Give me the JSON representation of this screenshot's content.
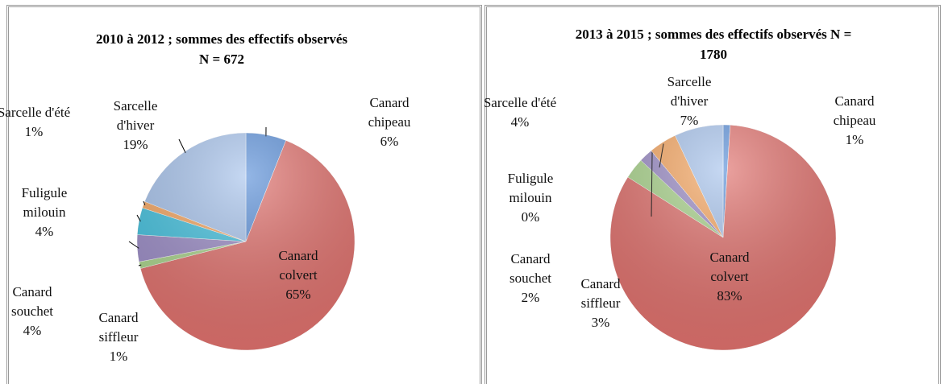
{
  "chart_data": [
    {
      "type": "pie",
      "title": "2010 à 2012 ; sommes des effectifs observés N = 672",
      "categories": [
        "Canard chipeau",
        "Canard colvert",
        "Canard siffleur",
        "Canard souchet",
        "Fuligule milouin",
        "Sarcelle d'été",
        "Sarcelle d'hiver"
      ],
      "values": [
        6,
        65,
        1,
        4,
        4,
        1,
        19
      ],
      "value_labels": [
        "6%",
        "65%",
        "1%",
        "4%",
        "4%",
        "1%",
        "19%"
      ],
      "colors": [
        "#5a8fd8",
        "#e0706c",
        "#a9d38b",
        "#9b8cc6",
        "#43c1de",
        "#f6a661",
        "#a7c3ec"
      ]
    },
    {
      "type": "pie",
      "title": "2013 à 2015 ; sommes des effectifs observés N = 1780",
      "categories": [
        "Canard chipeau",
        "Canard colvert",
        "Canard siffleur",
        "Canard souchet",
        "Fuligule milouin",
        "Sarcelle d'été",
        "Sarcelle d'hiver"
      ],
      "values": [
        1,
        83,
        3,
        2,
        0,
        4,
        7
      ],
      "value_labels": [
        "1%",
        "83%",
        "3%",
        "2%",
        "0%",
        "4%",
        "7%"
      ],
      "colors": [
        "#5a8fd8",
        "#e0706c",
        "#a9d38b",
        "#9b8cc6",
        "#43c1de",
        "#f6a661",
        "#a7c3ec"
      ]
    }
  ]
}
